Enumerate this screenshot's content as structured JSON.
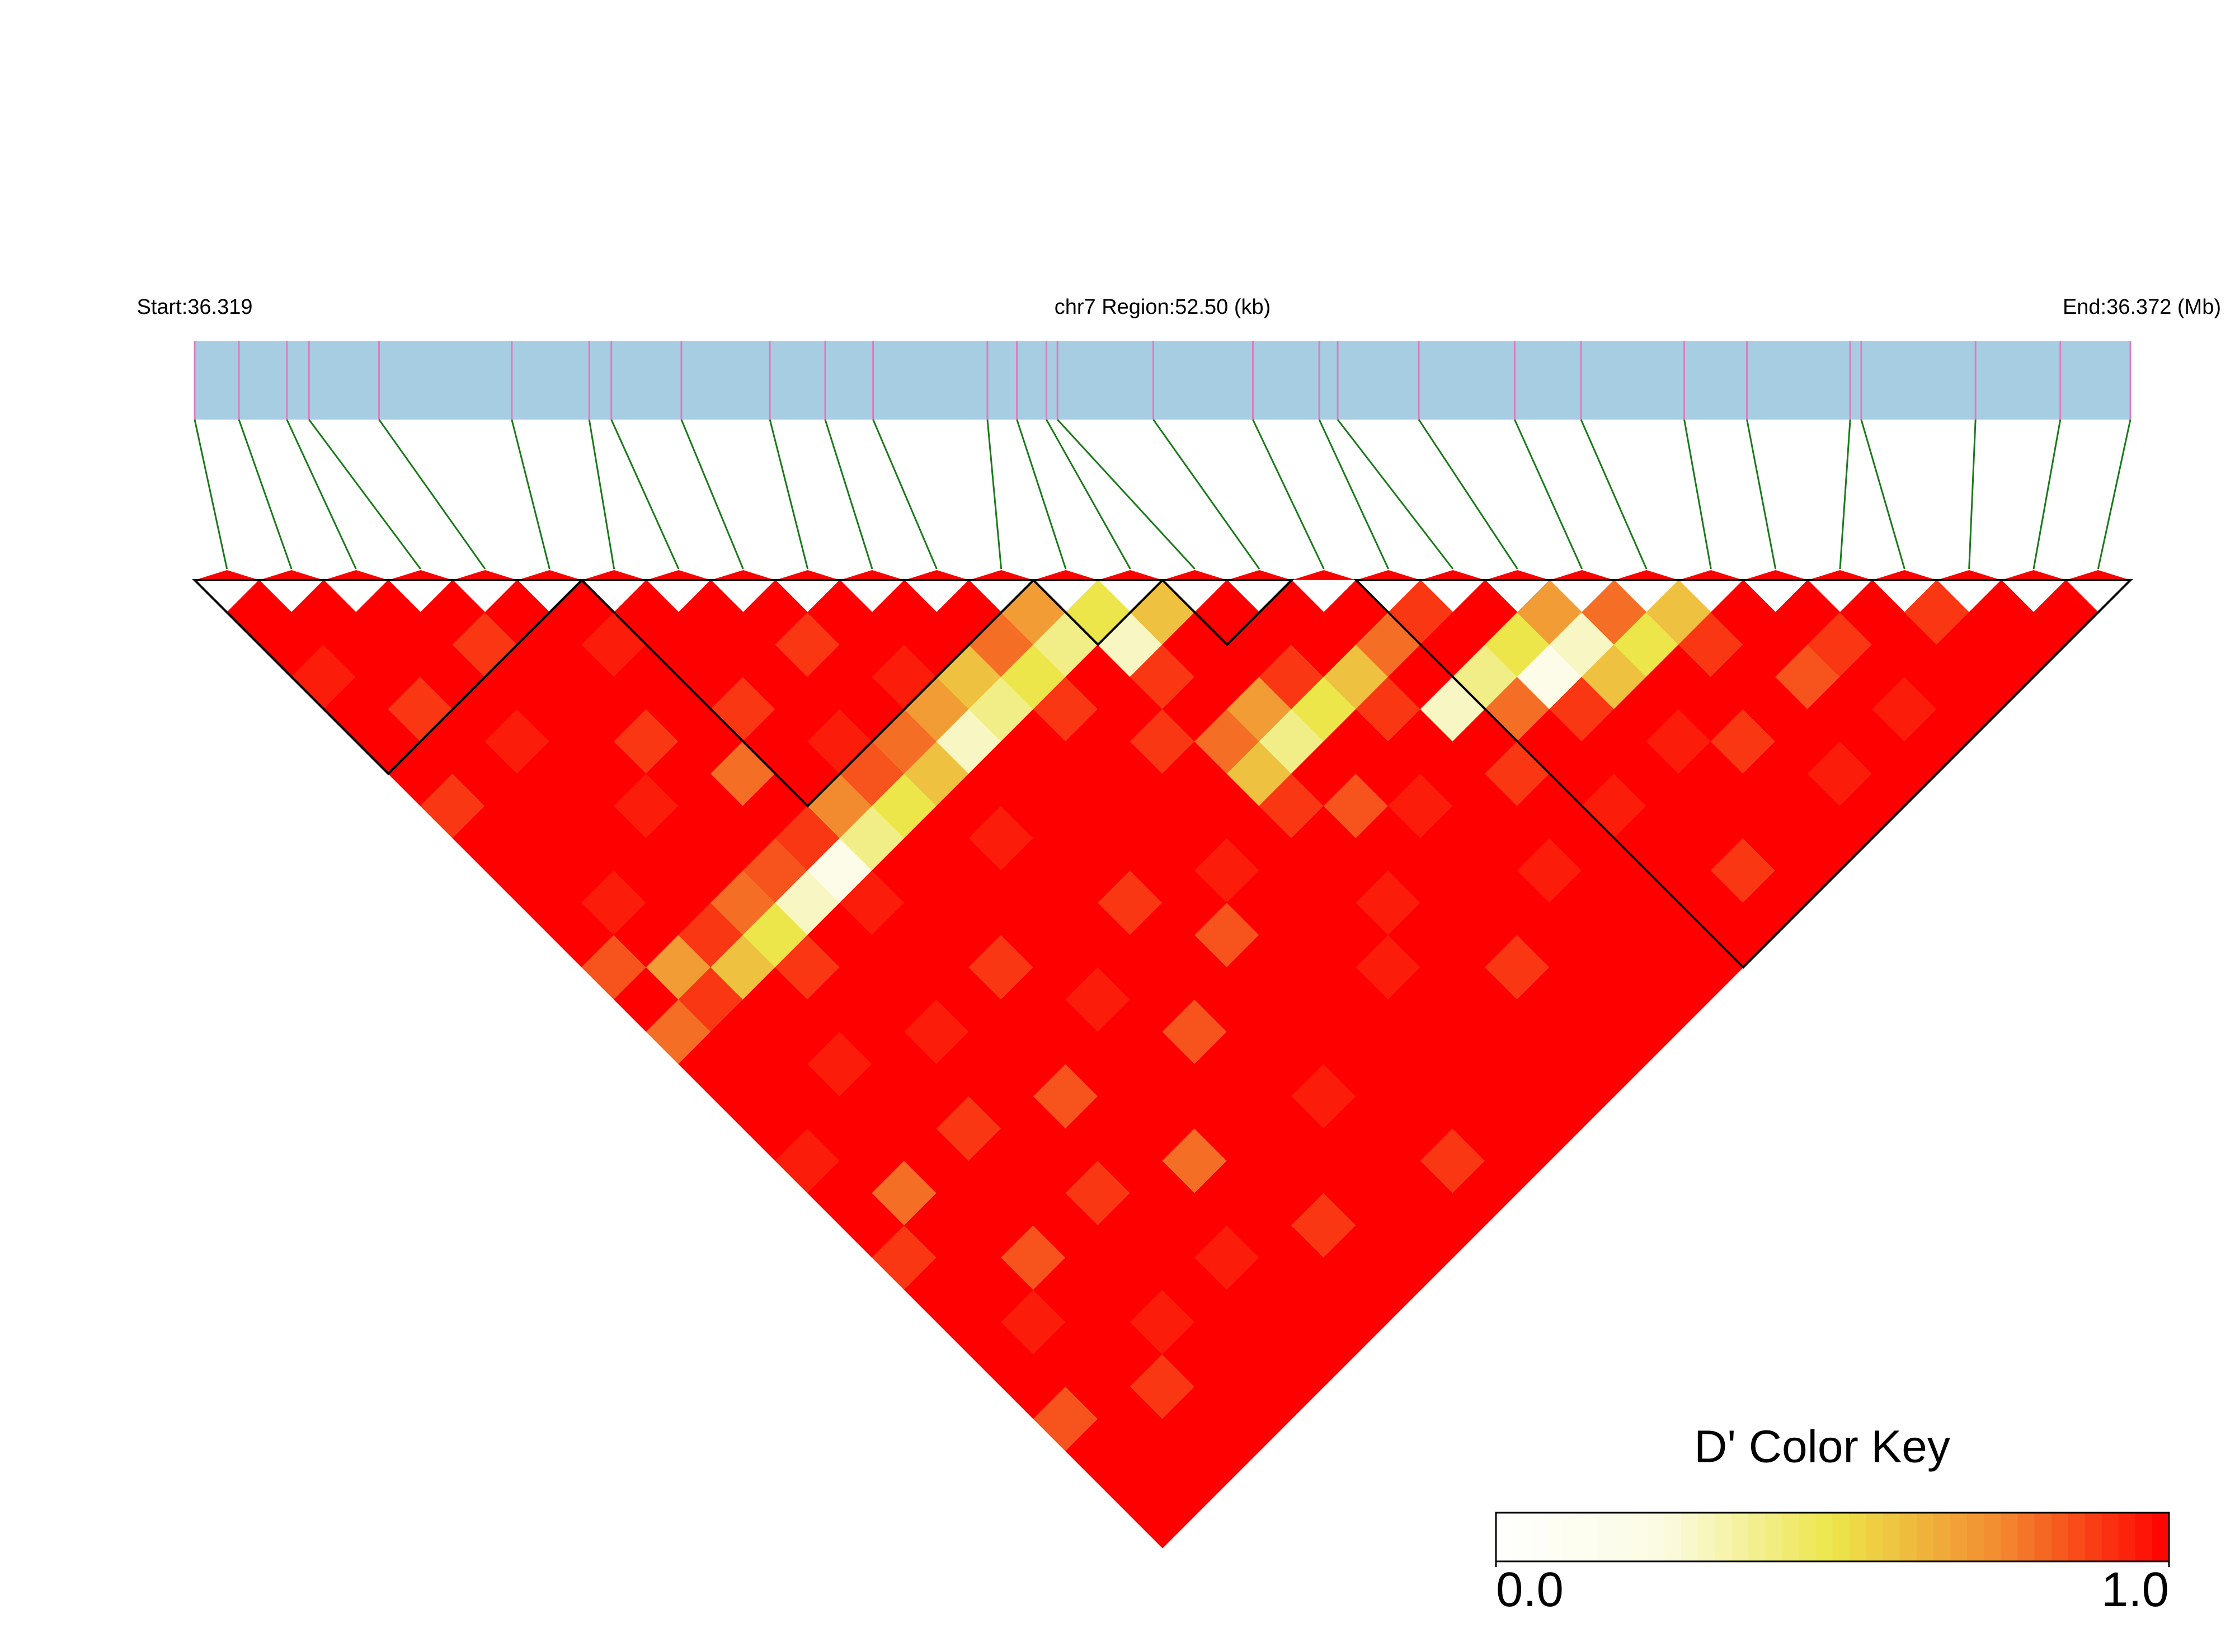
{
  "chart_data": {
    "type": "ld_heatmap",
    "start_label": "Start:36.319",
    "region_label": "chr7 Region:52.50 (kb)",
    "end_label": "End:36.372 (Mb)",
    "xlim": [
      36.319,
      36.3715
    ],
    "snp_positions": [
      36.319,
      36.3202,
      36.3215,
      36.3221,
      36.324,
      36.3276,
      36.3297,
      36.3303,
      36.3322,
      36.3346,
      36.3361,
      36.3374,
      36.3405,
      36.3413,
      36.3421,
      36.3424,
      36.345,
      36.3477,
      36.3495,
      36.35,
      36.3522,
      36.3548,
      36.3566,
      36.3594,
      36.3611,
      36.3639,
      36.3642,
      36.3673,
      36.3696,
      36.3715
    ],
    "bar_color": "#a6cde2",
    "snp_line_color": "#e07bbf",
    "link_color": "#1a7a1a",
    "block_color": "#000000",
    "blocks": [
      [
        0,
        5
      ],
      [
        6,
        12
      ],
      [
        13,
        14
      ],
      [
        15,
        16
      ],
      [
        18,
        29
      ]
    ],
    "dprime": [
      [
        1,
        1,
        0.95,
        1,
        1,
        1,
        0.9,
        1,
        1,
        1,
        1,
        0.85,
        1,
        0.8,
        1,
        1,
        1,
        0.95,
        1,
        1,
        0.9,
        1,
        1,
        1,
        1,
        0.85,
        1,
        1,
        1
      ],
      [
        1,
        1,
        1,
        0.9,
        1,
        1,
        1,
        1,
        1,
        0.95,
        1,
        0.7,
        0.9,
        1,
        1,
        1,
        1,
        1,
        0.8,
        1,
        1,
        1,
        0.95,
        1,
        1,
        1,
        1,
        1
      ],
      [
        1,
        1,
        1,
        1,
        0.95,
        1,
        1,
        1,
        1,
        1,
        0.9,
        0.6,
        1,
        1,
        0.95,
        1,
        1,
        1,
        1,
        1,
        0.85,
        1,
        1,
        1,
        0.9,
        1,
        1
      ],
      [
        1,
        0.9,
        1,
        1,
        1,
        1,
        0.95,
        1,
        1,
        0.8,
        0.5,
        0.9,
        1,
        1,
        1,
        1,
        0.9,
        1,
        1,
        1,
        1,
        1,
        0.95,
        1,
        1,
        1
      ],
      [
        1,
        1,
        1,
        1,
        0.9,
        1,
        1,
        1,
        0.85,
        0.3,
        1,
        1,
        1,
        0.95,
        1,
        1,
        1,
        1,
        0.9,
        1,
        1,
        1,
        1,
        1,
        1
      ],
      [
        1,
        0.95,
        1,
        1,
        1,
        0.8,
        1,
        0.9,
        0.2,
        0.95,
        1,
        1,
        1,
        1,
        1,
        0.85,
        1,
        1,
        1,
        1,
        0.95,
        1,
        1,
        1
      ],
      [
        1,
        1,
        1,
        0.9,
        1,
        1,
        0.75,
        0.4,
        1,
        1,
        1,
        0.9,
        1,
        1,
        1,
        1,
        1,
        0.8,
        1,
        1,
        1,
        1,
        1
      ],
      [
        1,
        1,
        1,
        1,
        0.95,
        0.85,
        0.5,
        1,
        1,
        1,
        1,
        1,
        0.95,
        1,
        1,
        1,
        1,
        1,
        1,
        0.9,
        1,
        1
      ],
      [
        1,
        0.9,
        1,
        1,
        0.8,
        0.6,
        1,
        0.95,
        1,
        1,
        1,
        1,
        1,
        0.85,
        1,
        1,
        1,
        1,
        1,
        1,
        1
      ],
      [
        1,
        1,
        0.95,
        0.7,
        0.3,
        1,
        1,
        1,
        1,
        0.9,
        1,
        1,
        1,
        1,
        1,
        0.95,
        1,
        1,
        1,
        1
      ],
      [
        1,
        1,
        0.6,
        0.4,
        1,
        1,
        1,
        1,
        1,
        1,
        0.85,
        1,
        1,
        1,
        1,
        1,
        1,
        0.9,
        1
      ],
      [
        1,
        0.8,
        0.5,
        0.9,
        1,
        1,
        1,
        1,
        0.95,
        1,
        1,
        1,
        1,
        1,
        1,
        1,
        1,
        1
      ],
      [
        0.7,
        0.4,
        1,
        1,
        0.9,
        1,
        1,
        1,
        1,
        1,
        1,
        0.95,
        1,
        1,
        1,
        1,
        1
      ],
      [
        0.5,
        0.3,
        0.9,
        1,
        0.8,
        0.6,
        0.9,
        1,
        1,
        0.95,
        1,
        1,
        1,
        1,
        1,
        1
      ],
      [
        0.6,
        1,
        1,
        0.7,
        0.4,
        1,
        0.85,
        1,
        1,
        1,
        1,
        0.9,
        1,
        1,
        1
      ],
      [
        1,
        1,
        0.9,
        0.5,
        1,
        1,
        0.95,
        1,
        1,
        1,
        1,
        1,
        1,
        1
      ],
      [
        1,
        1,
        0.6,
        0.9,
        1,
        1,
        1,
        1,
        0.95,
        1,
        1,
        1,
        1
      ],
      [
        1,
        0.8,
        1,
        0.3,
        1,
        0.9,
        1,
        1,
        1,
        1,
        1,
        1
      ],
      [
        0.9,
        1,
        0.4,
        0.8,
        1,
        1,
        0.95,
        1,
        1,
        1,
        1
      ],
      [
        1,
        0.5,
        0.2,
        0.9,
        1,
        1,
        1,
        1,
        0.9,
        1
      ],
      [
        0.7,
        0.3,
        0.6,
        1,
        0.95,
        1,
        1,
        1,
        1
      ],
      [
        0.8,
        0.5,
        1,
        1,
        0.9,
        1,
        1,
        1
      ],
      [
        0.6,
        0.9,
        1,
        1,
        1,
        0.95,
        1
      ],
      [
        1,
        1,
        0.85,
        1,
        1,
        1
      ],
      [
        1,
        0.9,
        1,
        0.95,
        1
      ],
      [
        1,
        1,
        1,
        1
      ],
      [
        0.9,
        1,
        1
      ],
      [
        1,
        1
      ],
      [
        1
      ]
    ],
    "color_scale": [
      "#ffffff",
      "#fbfbe3",
      "#ece64a",
      "#f28a30",
      "#ff0000"
    ],
    "color_key_title": "D' Color Key",
    "color_key_lim": [
      0,
      1
    ],
    "color_key_ticks": [
      {
        "value": 0,
        "label": "0.0"
      },
      {
        "value": 1,
        "label": "1.0"
      }
    ]
  }
}
